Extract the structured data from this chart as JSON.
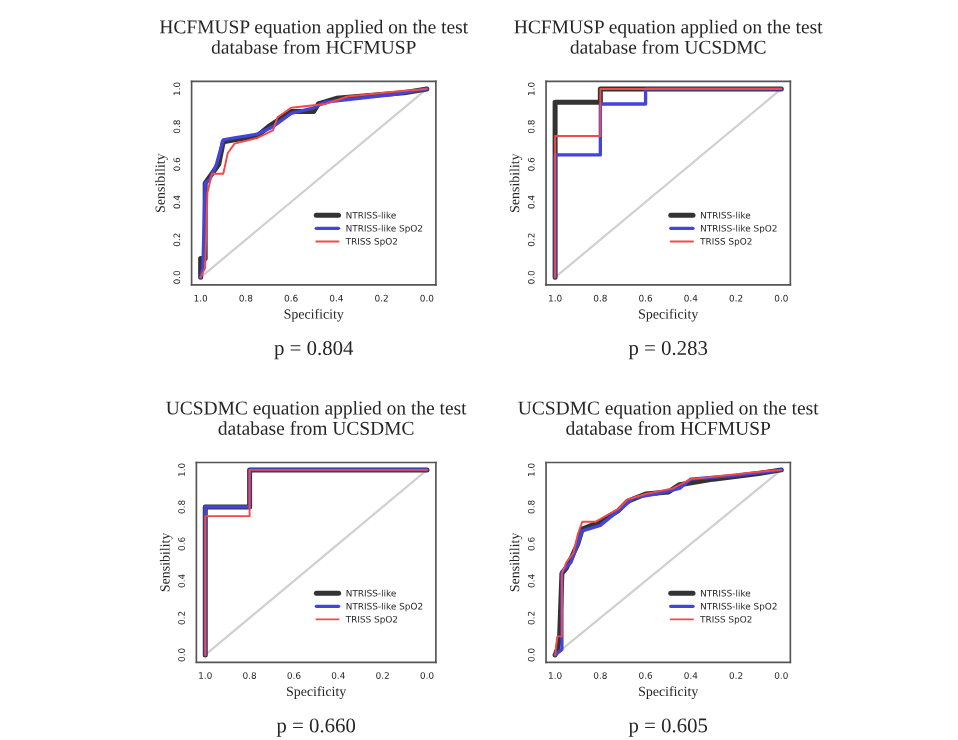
{
  "chart_data": [
    {
      "type": "line",
      "title": "HCFMUSP equation applied on the test\ndatabase from HCFMUSP",
      "xlabel": "Specificity",
      "ylabel": "Sensibility",
      "annotations": [
        "p = 0.804"
      ],
      "legend": "bottom right",
      "grid": false,
      "xlim": [
        1.04,
        -0.04
      ],
      "ylim": [
        -0.04,
        1.04
      ],
      "xticks": [
        {
          "value": 1.0,
          "label": "1.0"
        },
        {
          "value": 0.8,
          "label": "0.8"
        },
        {
          "value": 0.6,
          "label": "0.6"
        },
        {
          "value": 0.4,
          "label": "0.4"
        },
        {
          "value": 0.2,
          "label": "0.2"
        },
        {
          "value": 0.0,
          "label": "0.0"
        }
      ],
      "yticks": [
        {
          "value": 0.0,
          "label": "0.0"
        },
        {
          "value": 0.2,
          "label": "0.2"
        },
        {
          "value": 0.4,
          "label": "0.4"
        },
        {
          "value": 0.6,
          "label": "0.6"
        },
        {
          "value": 0.8,
          "label": "0.8"
        },
        {
          "value": 1.0,
          "label": "1.0"
        }
      ],
      "series": [
        {
          "color": "#d0d0d0",
          "x": [
            1,
            0
          ],
          "values": [
            0,
            1
          ]
        },
        {
          "name": "NTRISS-like",
          "color": "#333333",
          "x": [
            1,
            1,
            0.98,
            0.98,
            0.95,
            0.92,
            0.9,
            0.85,
            0.75,
            0.7,
            0.6,
            0.5,
            0.48,
            0.4,
            0.2,
            0.1,
            0
          ],
          "values": [
            0,
            0.1,
            0.1,
            0.5,
            0.55,
            0.6,
            0.72,
            0.73,
            0.75,
            0.8,
            0.88,
            0.88,
            0.92,
            0.95,
            0.97,
            0.98,
            1
          ]
        },
        {
          "name": "NTRISS-like SpO2",
          "color": "#4444d8",
          "x": [
            1,
            0.99,
            0.98,
            0.96,
            0.93,
            0.9,
            0.85,
            0.75,
            0.68,
            0.6,
            0.5,
            0.45,
            0.3,
            0.15,
            0
          ],
          "values": [
            0,
            0.05,
            0.5,
            0.52,
            0.6,
            0.73,
            0.74,
            0.76,
            0.8,
            0.87,
            0.9,
            0.93,
            0.95,
            0.97,
            1
          ]
        },
        {
          "name": "TRISS SpO2",
          "color": "#f04a4a",
          "x": [
            1,
            0.98,
            0.97,
            0.95,
            0.9,
            0.88,
            0.85,
            0.75,
            0.68,
            0.66,
            0.6,
            0.45,
            0.35,
            0.1,
            0
          ],
          "values": [
            0,
            0.05,
            0.45,
            0.55,
            0.55,
            0.66,
            0.71,
            0.74,
            0.78,
            0.85,
            0.9,
            0.92,
            0.96,
            0.99,
            1
          ]
        }
      ]
    },
    {
      "type": "line",
      "title": "HCFMUSP equation applied on the test\ndatabase from UCSDMC",
      "xlabel": "Specificity",
      "ylabel": "Sensibility",
      "annotations": [
        "p = 0.283"
      ],
      "legend": "bottom right",
      "grid": false,
      "xlim": [
        1.04,
        -0.04
      ],
      "ylim": [
        -0.04,
        1.04
      ],
      "xticks": [
        {
          "value": 1.0,
          "label": "1.0"
        },
        {
          "value": 0.8,
          "label": "0.8"
        },
        {
          "value": 0.6,
          "label": "0.6"
        },
        {
          "value": 0.4,
          "label": "0.4"
        },
        {
          "value": 0.2,
          "label": "0.2"
        },
        {
          "value": 0.0,
          "label": "0.0"
        }
      ],
      "yticks": [
        {
          "value": 0.0,
          "label": "0.0"
        },
        {
          "value": 0.2,
          "label": "0.2"
        },
        {
          "value": 0.4,
          "label": "0.4"
        },
        {
          "value": 0.6,
          "label": "0.6"
        },
        {
          "value": 0.8,
          "label": "0.8"
        },
        {
          "value": 1.0,
          "label": "1.0"
        }
      ],
      "series": [
        {
          "color": "#d0d0d0",
          "x": [
            1,
            0
          ],
          "values": [
            0,
            1
          ]
        },
        {
          "name": "NTRISS-like",
          "color": "#333333",
          "x": [
            1,
            1,
            0.8,
            0.8,
            0
          ],
          "values": [
            0,
            0.93,
            0.93,
            1,
            1
          ]
        },
        {
          "name": "NTRISS-like SpO2",
          "color": "#4444d8",
          "x": [
            1,
            1,
            0.8,
            0.8,
            0.6,
            0.6,
            0
          ],
          "values": [
            0,
            0.65,
            0.65,
            0.92,
            0.92,
            1,
            1
          ]
        },
        {
          "name": "TRISS SpO2",
          "color": "#f04a4a",
          "x": [
            1,
            1,
            0.8,
            0.8,
            0
          ],
          "values": [
            0,
            0.75,
            0.75,
            1,
            1
          ]
        }
      ]
    },
    {
      "type": "line",
      "title": "UCSDMC equation applied on the test\ndatabase from UCSDMC",
      "xlabel": "Specificity",
      "ylabel": "Sensibility",
      "annotations": [
        "p = 0.660"
      ],
      "legend": "bottom right",
      "grid": false,
      "xlim": [
        1.04,
        -0.04
      ],
      "ylim": [
        -0.04,
        1.04
      ],
      "xticks": [
        {
          "value": 1.0,
          "label": "1.0"
        },
        {
          "value": 0.8,
          "label": "0.8"
        },
        {
          "value": 0.6,
          "label": "0.6"
        },
        {
          "value": 0.4,
          "label": "0.4"
        },
        {
          "value": 0.2,
          "label": "0.2"
        },
        {
          "value": 0.0,
          "label": "0.0"
        }
      ],
      "yticks": [
        {
          "value": 0.0,
          "label": "0.0"
        },
        {
          "value": 0.2,
          "label": "0.2"
        },
        {
          "value": 0.4,
          "label": "0.4"
        },
        {
          "value": 0.6,
          "label": "0.6"
        },
        {
          "value": 0.8,
          "label": "0.8"
        },
        {
          "value": 1.0,
          "label": "1.0"
        }
      ],
      "series": [
        {
          "color": "#d0d0d0",
          "x": [
            1,
            0
          ],
          "values": [
            0,
            1
          ]
        },
        {
          "name": "NTRISS-like",
          "color": "#333333",
          "x": [
            1,
            1,
            0.8,
            0.8,
            0
          ],
          "values": [
            0,
            0.8,
            0.8,
            1,
            1
          ]
        },
        {
          "name": "NTRISS-like SpO2",
          "color": "#4444d8",
          "x": [
            1,
            1,
            0.8,
            0.8,
            0
          ],
          "values": [
            0,
            0.8,
            0.8,
            1,
            1
          ]
        },
        {
          "name": "TRISS SpO2",
          "color": "#f04a4a",
          "x": [
            1,
            1,
            0.8,
            0.8,
            0
          ],
          "values": [
            0,
            0.75,
            0.75,
            1,
            1
          ]
        }
      ]
    },
    {
      "type": "line",
      "title": "UCSDMC equation applied on the test\ndatabase from HCFMUSP",
      "xlabel": "Specificity",
      "ylabel": "Sensibility",
      "annotations": [
        "p = 0.605"
      ],
      "legend": "bottom right",
      "grid": false,
      "xlim": [
        1.04,
        -0.04
      ],
      "ylim": [
        -0.04,
        1.04
      ],
      "xticks": [
        {
          "value": 1.0,
          "label": "1.0"
        },
        {
          "value": 0.8,
          "label": "0.8"
        },
        {
          "value": 0.6,
          "label": "0.6"
        },
        {
          "value": 0.4,
          "label": "0.4"
        },
        {
          "value": 0.2,
          "label": "0.2"
        },
        {
          "value": 0.0,
          "label": "0.0"
        }
      ],
      "yticks": [
        {
          "value": 0.0,
          "label": "0.0"
        },
        {
          "value": 0.2,
          "label": "0.2"
        },
        {
          "value": 0.4,
          "label": "0.4"
        },
        {
          "value": 0.6,
          "label": "0.6"
        },
        {
          "value": 0.8,
          "label": "0.8"
        },
        {
          "value": 1.0,
          "label": "1.0"
        }
      ],
      "series": [
        {
          "color": "#d0d0d0",
          "x": [
            1,
            0
          ],
          "values": [
            0,
            1
          ]
        },
        {
          "name": "NTRISS-like",
          "color": "#333333",
          "x": [
            1,
            0.99,
            0.98,
            0.97,
            0.95,
            0.93,
            0.9,
            0.88,
            0.8,
            0.72,
            0.68,
            0.6,
            0.5,
            0.45,
            0.3,
            0.1,
            0
          ],
          "values": [
            0,
            0.03,
            0.1,
            0.44,
            0.47,
            0.52,
            0.6,
            0.68,
            0.72,
            0.78,
            0.83,
            0.87,
            0.88,
            0.92,
            0.95,
            0.98,
            1
          ]
        },
        {
          "name": "NTRISS-like SpO2",
          "color": "#4444d8",
          "x": [
            1,
            0.97,
            0.97,
            0.93,
            0.9,
            0.88,
            0.8,
            0.7,
            0.65,
            0.55,
            0.45,
            0.4,
            0.2,
            0
          ],
          "values": [
            0,
            0.03,
            0.45,
            0.5,
            0.6,
            0.67,
            0.7,
            0.8,
            0.85,
            0.87,
            0.9,
            0.95,
            0.97,
            1
          ]
        },
        {
          "name": "TRISS SpO2",
          "color": "#f04a4a",
          "x": [
            1,
            0.99,
            0.97,
            0.97,
            0.95,
            0.92,
            0.9,
            0.88,
            0.82,
            0.72,
            0.68,
            0.6,
            0.48,
            0.4,
            0.1,
            0
          ],
          "values": [
            0,
            0.1,
            0.1,
            0.44,
            0.5,
            0.55,
            0.65,
            0.72,
            0.72,
            0.79,
            0.84,
            0.87,
            0.9,
            0.95,
            0.99,
            1
          ]
        }
      ]
    }
  ]
}
